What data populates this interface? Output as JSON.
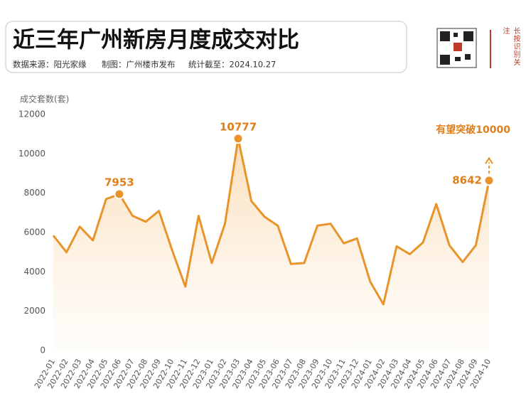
{
  "chart_data": {
    "type": "line",
    "title": "近三年广州新房月度成交对比",
    "subtitle": [
      "数据来源：阳光家缘",
      "制图：广州楼市发布",
      "统计截至：2024.10.27"
    ],
    "side_text": "长按识别关注",
    "y_label": "成交套数(套)",
    "annotation": "有望突破10000",
    "categories": [
      "2022-01",
      "2022-02",
      "2022-03",
      "2022-04",
      "2022-05",
      "2022-06",
      "2022-07",
      "2022-08",
      "2022-09",
      "2022-10",
      "2022-11",
      "2022-12",
      "2023-01",
      "2023-02",
      "2023-03",
      "2023-04",
      "2023-05",
      "2023-06",
      "2023-07",
      "2023-08",
      "2023-09",
      "2023-10",
      "2023-11",
      "2023-12",
      "2024-01",
      "2024-02",
      "2024-03",
      "2024-04",
      "2024-05",
      "2024-06",
      "2024-07",
      "2024-08",
      "2024-09",
      "2024-10"
    ],
    "values": [
      5850,
      5000,
      6300,
      5600,
      7700,
      7953,
      6850,
      6550,
      7100,
      5100,
      3250,
      6850,
      4450,
      6450,
      10777,
      7600,
      6800,
      6350,
      4400,
      4450,
      6350,
      6450,
      5450,
      5700,
      3500,
      2350,
      5300,
      4900,
      5500,
      7450,
      5350,
      4500,
      5350,
      8642
    ],
    "value_labels": [
      null,
      null,
      null,
      null,
      null,
      "7953",
      null,
      null,
      null,
      null,
      null,
      null,
      null,
      null,
      "10777",
      null,
      null,
      null,
      null,
      null,
      null,
      null,
      null,
      null,
      null,
      null,
      null,
      null,
      null,
      null,
      null,
      null,
      null,
      "8642"
    ],
    "color": "#e8942a",
    "ylim": [
      0,
      12000
    ],
    "yticks": [
      0,
      2000,
      4000,
      6000,
      8000,
      10000,
      12000
    ],
    "grid": false
  }
}
